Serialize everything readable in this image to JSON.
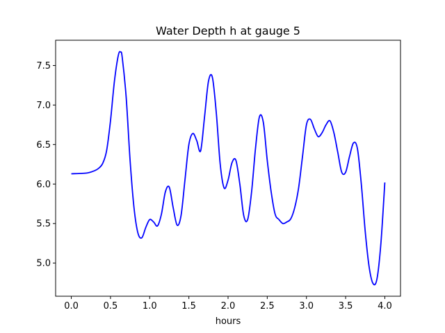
{
  "chart_data": {
    "type": "line",
    "title": "Water Depth h at gauge 5",
    "xlabel": "hours",
    "ylabel": "",
    "xlim": [
      -0.2,
      4.2
    ],
    "ylim": [
      4.58,
      7.82
    ],
    "xticks": [
      0.0,
      0.5,
      1.0,
      1.5,
      2.0,
      2.5,
      3.0,
      3.5,
      4.0
    ],
    "xtick_labels": [
      "0.0",
      "0.5",
      "1.0",
      "1.5",
      "2.0",
      "2.5",
      "3.0",
      "3.5",
      "4.0"
    ],
    "yticks": [
      5.0,
      5.5,
      6.0,
      6.5,
      7.0,
      7.5
    ],
    "ytick_labels": [
      "5.0",
      "5.5",
      "6.0",
      "6.5",
      "7.0",
      "7.5"
    ],
    "grid": false,
    "series": [
      {
        "color": "#0000ff",
        "x": [
          0.0,
          0.2,
          0.3,
          0.35,
          0.4,
          0.45,
          0.5,
          0.55,
          0.6,
          0.63,
          0.65,
          0.7,
          0.75,
          0.8,
          0.85,
          0.9,
          0.95,
          1.0,
          1.05,
          1.1,
          1.15,
          1.2,
          1.25,
          1.3,
          1.35,
          1.4,
          1.45,
          1.5,
          1.55,
          1.6,
          1.65,
          1.7,
          1.75,
          1.8,
          1.85,
          1.9,
          1.95,
          2.0,
          2.05,
          2.1,
          2.15,
          2.2,
          2.25,
          2.3,
          2.35,
          2.4,
          2.45,
          2.5,
          2.55,
          2.6,
          2.65,
          2.7,
          2.75,
          2.8,
          2.85,
          2.9,
          2.95,
          3.0,
          3.05,
          3.1,
          3.15,
          3.2,
          3.25,
          3.3,
          3.35,
          3.4,
          3.45,
          3.5,
          3.55,
          3.6,
          3.65,
          3.7,
          3.75,
          3.8,
          3.85,
          3.9,
          3.95,
          4.0
        ],
        "y": [
          6.13,
          6.14,
          6.17,
          6.2,
          6.26,
          6.42,
          6.8,
          7.3,
          7.63,
          7.67,
          7.6,
          7.1,
          6.3,
          5.7,
          5.38,
          5.32,
          5.45,
          5.55,
          5.52,
          5.47,
          5.62,
          5.9,
          5.96,
          5.7,
          5.48,
          5.6,
          6.05,
          6.5,
          6.64,
          6.55,
          6.42,
          6.85,
          7.3,
          7.35,
          6.9,
          6.25,
          5.95,
          6.05,
          6.27,
          6.3,
          6.0,
          5.6,
          5.55,
          5.9,
          6.45,
          6.85,
          6.78,
          6.3,
          5.9,
          5.62,
          5.55,
          5.5,
          5.52,
          5.56,
          5.7,
          5.95,
          6.35,
          6.75,
          6.82,
          6.7,
          6.6,
          6.65,
          6.75,
          6.8,
          6.65,
          6.4,
          6.15,
          6.15,
          6.35,
          6.52,
          6.45,
          6.0,
          5.4,
          4.95,
          4.74,
          4.8,
          5.25,
          6.02
        ]
      }
    ]
  }
}
